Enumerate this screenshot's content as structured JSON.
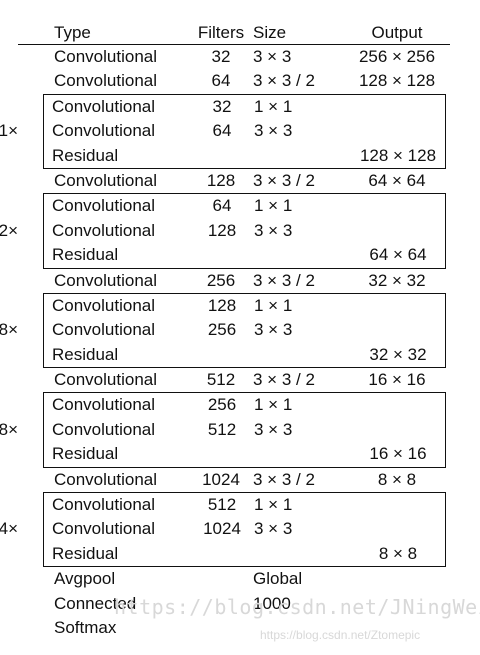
{
  "header": {
    "type": "Type",
    "filters": "Filters",
    "size": "Size",
    "output": "Output"
  },
  "rows": [
    {
      "type": "Convolutional",
      "filters": "32",
      "size": "3 × 3",
      "output": "256 × 256"
    },
    {
      "type": "Convolutional",
      "filters": "64",
      "size": "3 × 3 / 2",
      "output": "128 × 128"
    },
    {
      "group": {
        "mult": "1×",
        "rows": [
          {
            "type": "Convolutional",
            "filters": "32",
            "size": "1 × 1",
            "output": ""
          },
          {
            "type": "Convolutional",
            "filters": "64",
            "size": "3 × 3",
            "output": ""
          },
          {
            "type": "Residual",
            "filters": "",
            "size": "",
            "output": "128 × 128"
          }
        ]
      }
    },
    {
      "type": "Convolutional",
      "filters": "128",
      "size": "3 × 3 / 2",
      "output": "64 × 64"
    },
    {
      "group": {
        "mult": "2×",
        "rows": [
          {
            "type": "Convolutional",
            "filters": "64",
            "size": "1 × 1",
            "output": ""
          },
          {
            "type": "Convolutional",
            "filters": "128",
            "size": "3 × 3",
            "output": ""
          },
          {
            "type": "Residual",
            "filters": "",
            "size": "",
            "output": "64 × 64"
          }
        ]
      }
    },
    {
      "type": "Convolutional",
      "filters": "256",
      "size": "3 × 3 / 2",
      "output": "32 × 32"
    },
    {
      "group": {
        "mult": "8×",
        "rows": [
          {
            "type": "Convolutional",
            "filters": "128",
            "size": "1 × 1",
            "output": ""
          },
          {
            "type": "Convolutional",
            "filters": "256",
            "size": "3 × 3",
            "output": ""
          },
          {
            "type": "Residual",
            "filters": "",
            "size": "",
            "output": "32 × 32"
          }
        ]
      }
    },
    {
      "type": "Convolutional",
      "filters": "512",
      "size": "3 × 3 / 2",
      "output": "16 × 16"
    },
    {
      "group": {
        "mult": "8×",
        "rows": [
          {
            "type": "Convolutional",
            "filters": "256",
            "size": "1 × 1",
            "output": ""
          },
          {
            "type": "Convolutional",
            "filters": "512",
            "size": "3 × 3",
            "output": ""
          },
          {
            "type": "Residual",
            "filters": "",
            "size": "",
            "output": "16 × 16"
          }
        ]
      }
    },
    {
      "type": "Convolutional",
      "filters": "1024",
      "size": "3 × 3 / 2",
      "output": "8 × 8"
    },
    {
      "group": {
        "mult": "4×",
        "rows": [
          {
            "type": "Convolutional",
            "filters": "512",
            "size": "1 × 1",
            "output": ""
          },
          {
            "type": "Convolutional",
            "filters": "1024",
            "size": "3 × 3",
            "output": ""
          },
          {
            "type": "Residual",
            "filters": "",
            "size": "",
            "output": "8 × 8"
          }
        ]
      }
    },
    {
      "type": "Avgpool",
      "filters": "",
      "size": "Global",
      "output": ""
    },
    {
      "type": "Connected",
      "filters": "",
      "size": "1000",
      "output": ""
    },
    {
      "type": "Softmax",
      "filters": "",
      "size": "",
      "output": ""
    }
  ],
  "watermarks": {
    "main": "https://blog.csdn.net/JNingWei",
    "sub": "https://blog.csdn.net/Ztomepic"
  }
}
